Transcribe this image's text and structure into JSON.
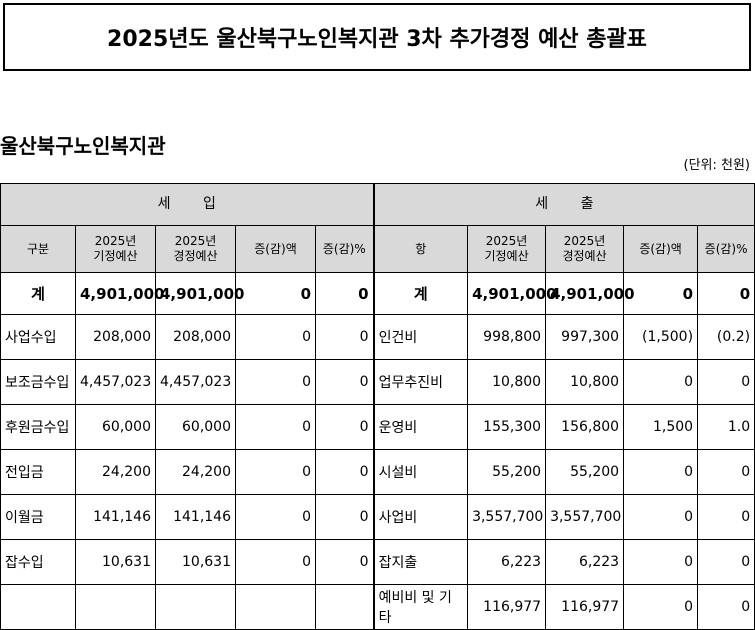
{
  "header": {
    "title": "2025년도 울산북구노인복지관 3차 추가경정 예산 총괄표",
    "org": "울산북구노인복지관",
    "unit": "(단위: 천원)"
  },
  "table": {
    "groups": [
      "세 입",
      "세 출"
    ],
    "headers": [
      "구분",
      "2025년\n기정예산",
      "2025년\n경정예산",
      "증(감)액",
      "증(감)%",
      "항",
      "2025년\n기정예산",
      "2025년\n경정예산",
      "증(감)액",
      "증(감)%"
    ],
    "rows": [
      [
        "계",
        "4,901,000",
        "4,901,000",
        "0",
        "0",
        "계",
        "4,901,000",
        "4,901,000",
        "0",
        "0"
      ],
      [
        "사업수입",
        "208,000",
        "208,000",
        "0",
        "0",
        "인건비",
        "998,800",
        "997,300",
        "(1,500)",
        "(0.2)"
      ],
      [
        "보조금수입",
        "4,457,023",
        "4,457,023",
        "0",
        "0",
        "업무추진비",
        "10,800",
        "10,800",
        "0",
        "0"
      ],
      [
        "후원금수입",
        "60,000",
        "60,000",
        "0",
        "0",
        "운영비",
        "155,300",
        "156,800",
        "1,500",
        "1.0"
      ],
      [
        "전입금",
        "24,200",
        "24,200",
        "0",
        "0",
        "시설비",
        "55,200",
        "55,200",
        "0",
        "0"
      ],
      [
        "이월금",
        "141,146",
        "141,146",
        "0",
        "0",
        "사업비",
        "3,557,700",
        "3,557,700",
        "0",
        "0"
      ],
      [
        "잡수입",
        "10,631",
        "10,631",
        "0",
        "0",
        "잡지출",
        "6,223",
        "6,223",
        "0",
        "0"
      ],
      [
        null,
        null,
        null,
        null,
        null,
        "예비비 및 기타",
        "116,977",
        "116,977",
        "0",
        "0"
      ]
    ]
  }
}
